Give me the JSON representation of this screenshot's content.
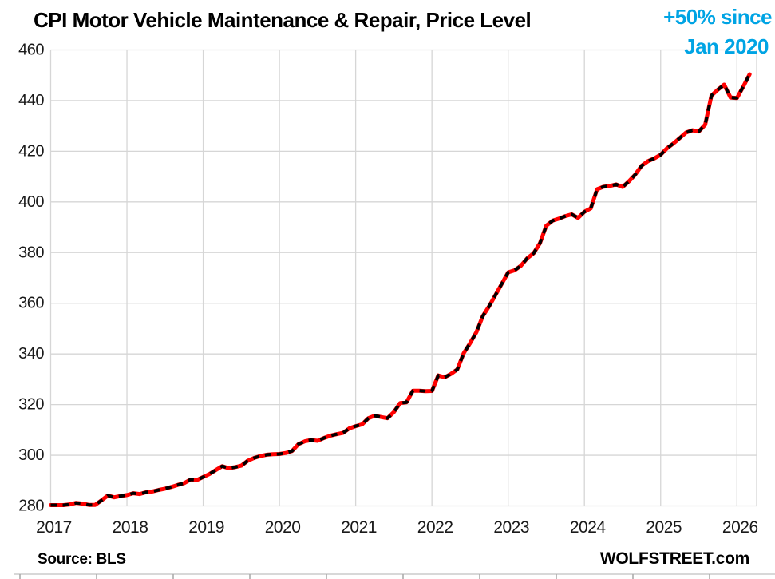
{
  "chart_data": {
    "type": "line",
    "title": "CPI Motor Vehicle Maintenance & Repair, Price Level",
    "annotation": {
      "line1": "+50% since",
      "line2": "Jan 2020"
    },
    "xlabel": "",
    "ylabel": "",
    "ylim": [
      280,
      460
    ],
    "y_ticks": [
      280,
      300,
      320,
      340,
      360,
      380,
      400,
      420,
      440,
      460
    ],
    "x_tick_labels": [
      "2017",
      "2018",
      "2019",
      "2020",
      "2021",
      "2022",
      "2023",
      "2024",
      "2025",
      "2026"
    ],
    "grid": true,
    "legend": false,
    "colors": {
      "line": "#FF0000",
      "marker_dashes": "#000000",
      "grid": "#D6D6D6",
      "tick_label": "#1A1A1A",
      "annotation": "#00A4E4"
    },
    "series": [
      {
        "name": "CPI Motor Vehicle Maintenance & Repair, index level, monthly",
        "freq": "monthly",
        "start": "2017-01",
        "end": "2026-03",
        "values": [
          280.3,
          280.3,
          280.3,
          280.6,
          281.2,
          280.9,
          280.4,
          280.4,
          282.2,
          284.1,
          283.4,
          283.9,
          284.3,
          285.0,
          284.7,
          285.4,
          285.7,
          286.3,
          286.8,
          287.5,
          288.3,
          289.0,
          290.4,
          290.2,
          291.4,
          292.6,
          294.2,
          295.7,
          294.9,
          295.3,
          295.9,
          297.8,
          298.9,
          299.7,
          300.2,
          300.4,
          300.5,
          300.9,
          301.7,
          304.4,
          305.5,
          306.0,
          305.7,
          306.8,
          307.7,
          308.3,
          308.8,
          310.6,
          311.5,
          312.2,
          314.6,
          315.6,
          315.1,
          314.6,
          317.0,
          320.6,
          320.9,
          325.5,
          325.5,
          325.3,
          325.4,
          331.5,
          330.8,
          332.1,
          333.9,
          340.3,
          344.2,
          348.6,
          354.9,
          358.8,
          363.3,
          367.7,
          372.2,
          373.0,
          374.8,
          377.8,
          379.7,
          383.7,
          390.6,
          392.6,
          393.4,
          394.4,
          395.1,
          393.7,
          396.1,
          397.5,
          405.0,
          406.0,
          406.3,
          406.9,
          405.9,
          408.1,
          410.8,
          414.3,
          416.1,
          417.2,
          418.6,
          421.2,
          423.1,
          425.2,
          427.4,
          428.3,
          427.8,
          430.5,
          442.0,
          444.3,
          446.3,
          441.2,
          441.0,
          445.5,
          450.4
        ]
      }
    ]
  },
  "footer": {
    "source": "Source: BLS",
    "branding": "WOLFSTREET.com"
  }
}
